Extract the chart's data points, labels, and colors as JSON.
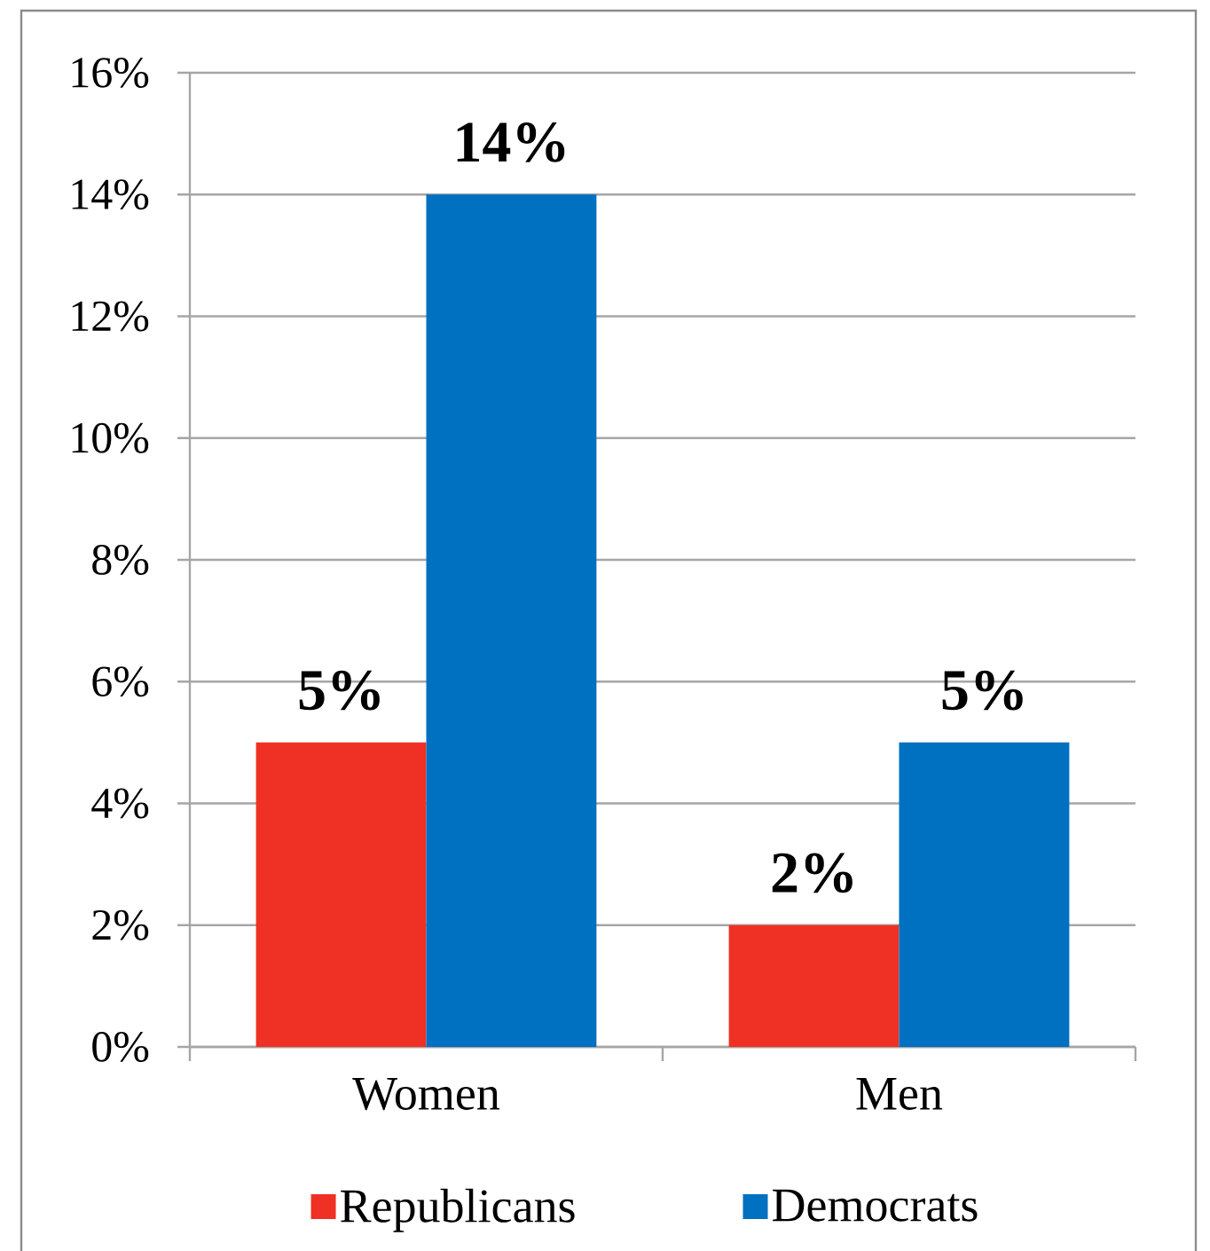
{
  "chart_data": {
    "type": "bar",
    "categories": [
      "Women",
      "Men"
    ],
    "series": [
      {
        "name": "Republicans",
        "color": "#ee3124",
        "values": [
          5,
          2
        ],
        "value_labels": [
          "5%",
          "2%"
        ]
      },
      {
        "name": "Democrats",
        "color": "#0070c0",
        "values": [
          14,
          5
        ],
        "value_labels": [
          "14%",
          "5%"
        ]
      }
    ],
    "ylim": [
      0,
      16
    ],
    "yticks": [
      {
        "value": 0,
        "label": "0%"
      },
      {
        "value": 2,
        "label": "2%"
      },
      {
        "value": 4,
        "label": "4%"
      },
      {
        "value": 6,
        "label": "6%"
      },
      {
        "value": 8,
        "label": "8%"
      },
      {
        "value": 10,
        "label": "10%"
      },
      {
        "value": 12,
        "label": "12%"
      },
      {
        "value": 14,
        "label": "14%"
      },
      {
        "value": 16,
        "label": "16%"
      }
    ],
    "grid": "y",
    "legend": "bottom"
  }
}
